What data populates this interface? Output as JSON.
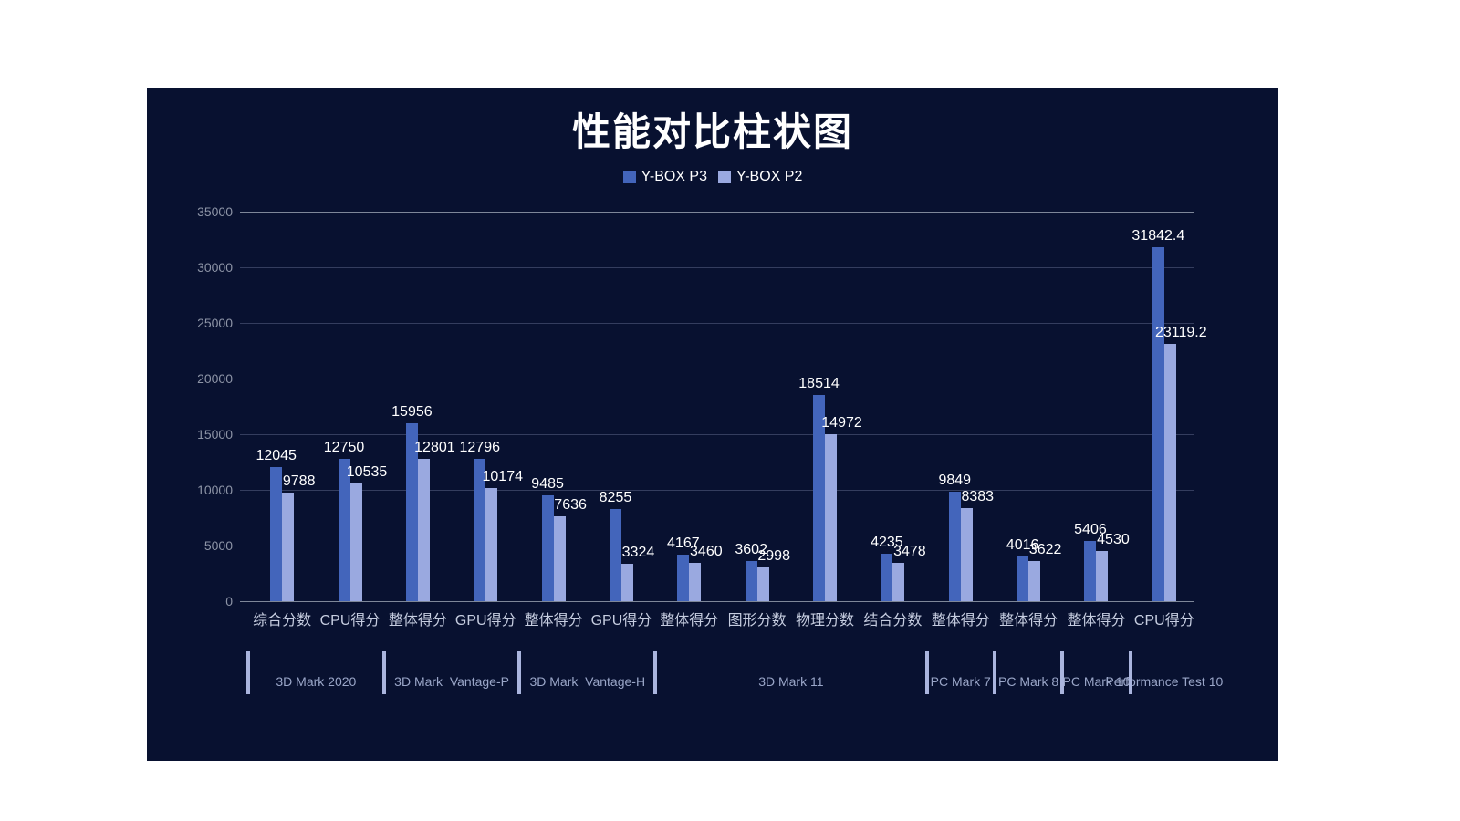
{
  "panel": {
    "background": "#081130"
  },
  "chart_data": {
    "type": "bar",
    "title": "性能对比柱状图",
    "categories": [
      "综合分数",
      "CPU得分",
      "整体得分",
      "GPU得分",
      "整体得分",
      "GPU得分",
      "整体得分",
      "图形分数",
      "物理分数",
      "结合分数",
      "整体得分",
      "整体得分",
      "整体得分",
      "CPU得分"
    ],
    "series": [
      {
        "name": "Y-BOX P3",
        "color": "#4365bb",
        "values": [
          12045,
          12750,
          15956,
          12796,
          9485,
          8255,
          4167,
          3602,
          18514,
          4235,
          9849,
          4016,
          5406,
          31842.4
        ]
      },
      {
        "name": "Y-BOX P2",
        "color": "#9aa9e0",
        "values": [
          9788,
          10535,
          12801,
          10174,
          7636,
          3324,
          3460,
          2998,
          14972,
          3478,
          8383,
          3622,
          4530,
          23119.2
        ]
      }
    ],
    "groups": [
      {
        "label": "3D Mark 2020",
        "span": 2
      },
      {
        "label": "3D Mark  Vantage-P",
        "span": 2
      },
      {
        "label": "3D Mark  Vantage-H",
        "span": 2
      },
      {
        "label": "3D Mark 11",
        "span": 4
      },
      {
        "label": "PC Mark 7",
        "span": 1
      },
      {
        "label": "PC Mark 8",
        "span": 1
      },
      {
        "label": "PC Mark 10",
        "span": 1
      },
      {
        "label": "Performance Test 10",
        "span": 1
      }
    ],
    "ylim": [
      0,
      35000
    ],
    "yticks": [
      0,
      5000,
      10000,
      15000,
      20000,
      25000,
      30000,
      35000
    ],
    "grid": true,
    "legend_position": "top",
    "colors": {
      "value_label": "#ffffff",
      "axis_label": "#c6cde0",
      "tick_label": "#8d94a6",
      "group_label": "#9aa6c8",
      "separator": "#aab5de",
      "gridline": "#343d5e",
      "axis_line": "#7e8799"
    }
  }
}
